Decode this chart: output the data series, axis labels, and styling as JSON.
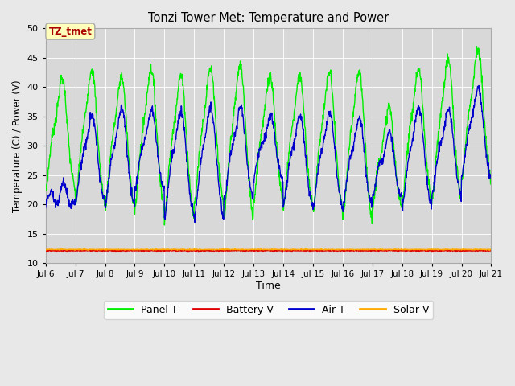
{
  "title": "Tonzi Tower Met: Temperature and Power",
  "xlabel": "Time",
  "ylabel": "Temperature (C) / Power (V)",
  "ylim": [
    10,
    50
  ],
  "xlim_days": [
    6,
    21
  ],
  "fig_facecolor": "#e8e8e8",
  "ax_facecolor": "#e8e8e8",
  "plot_area_facecolor": "#d4d4d4",
  "legend_labels": [
    "Panel T",
    "Battery V",
    "Air T",
    "Solar V"
  ],
  "legend_colors": [
    "#00ee00",
    "#dd0000",
    "#0000cc",
    "#ffaa00"
  ],
  "annotation_text": "TZ_tmet",
  "annotation_color": "#aa0000",
  "annotation_bg": "#ffffbb",
  "annotation_edgecolor": "#aaaaaa",
  "yticks": [
    10,
    15,
    20,
    25,
    30,
    35,
    40,
    45,
    50
  ],
  "xtick_positions": [
    6,
    7,
    8,
    9,
    10,
    11,
    12,
    13,
    14,
    15,
    16,
    17,
    18,
    19,
    20,
    21
  ],
  "xtick_labels": [
    "Jul 6",
    "Jul 7",
    "Jul 8",
    "Jul 9",
    "Jul 10",
    "Jul 11",
    "Jul 12",
    "Jul 13",
    "Jul 14",
    "Jul 15",
    "Jul 16",
    "Jul 17",
    "Jul 18",
    "Jul 19",
    "Jul 20",
    "Jul 21"
  ],
  "battery_V_level": 12.1,
  "solar_V_level": 12.3,
  "n_days": 15,
  "pts_per_day": 96,
  "panel_day_peaks": [
    39.8,
    41.5,
    40.2,
    41.5,
    40.5,
    41.7,
    42.2,
    40.4,
    40.5,
    41.0,
    41.2,
    35.0,
    41.5,
    43.2,
    44.8,
    42.8
  ],
  "panel_day_mins": [
    22.5,
    20.0,
    19.5,
    19.0,
    18.0,
    19.8,
    17.5,
    20.5,
    19.5,
    19.0,
    17.2,
    19.4,
    20.4,
    20.3,
    23.8,
    23.0
  ],
  "air_day_peaks": [
    22.0,
    34.0,
    35.2,
    35.0,
    34.8,
    35.5,
    35.4,
    34.0,
    34.2,
    34.5,
    33.5,
    31.0,
    35.4,
    35.2,
    38.7,
    36.4
  ],
  "air_day_mins": [
    20.5,
    20.5,
    19.8,
    22.5,
    18.0,
    17.8,
    20.6,
    24.5,
    19.5,
    19.5,
    19.5,
    21.0,
    19.5,
    21.5,
    24.5,
    23.8
  ],
  "seed": 7
}
